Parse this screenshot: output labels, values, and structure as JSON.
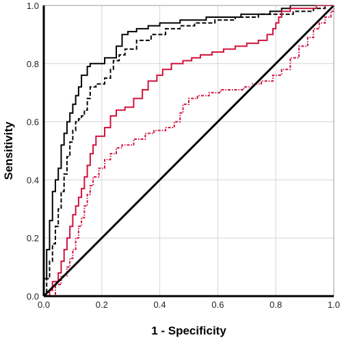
{
  "chart_data": {
    "type": "line",
    "title": "",
    "xlabel": "1 - Specificity",
    "ylabel": "Sensitivity",
    "xlim": [
      0,
      1
    ],
    "ylim": [
      0,
      1
    ],
    "grid": true,
    "legend": "none",
    "x_ticks": [
      "0.0",
      "0.2",
      "0.4",
      "0.6",
      "0.8",
      "1.0"
    ],
    "y_ticks": [
      "0.0",
      "0.2",
      "0.4",
      "0.6",
      "0.8",
      "1.0"
    ],
    "series": [
      {
        "color": "#000000",
        "style": "solid",
        "width": 2,
        "points": [
          [
            0,
            0
          ],
          [
            0,
            0.06
          ],
          [
            0.01,
            0.1
          ],
          [
            0.01,
            0.16
          ],
          [
            0.02,
            0.2
          ],
          [
            0.02,
            0.26
          ],
          [
            0.03,
            0.3
          ],
          [
            0.03,
            0.36
          ],
          [
            0.04,
            0.4
          ],
          [
            0.05,
            0.44
          ],
          [
            0.06,
            0.48
          ],
          [
            0.06,
            0.52
          ],
          [
            0.07,
            0.56
          ],
          [
            0.08,
            0.6
          ],
          [
            0.09,
            0.63
          ],
          [
            0.1,
            0.66
          ],
          [
            0.11,
            0.69
          ],
          [
            0.12,
            0.72
          ],
          [
            0.13,
            0.76
          ],
          [
            0.15,
            0.79
          ],
          [
            0.16,
            0.8
          ],
          [
            0.21,
            0.8
          ],
          [
            0.21,
            0.82
          ],
          [
            0.25,
            0.86
          ],
          [
            0.27,
            0.9
          ],
          [
            0.29,
            0.91
          ],
          [
            0.32,
            0.92
          ],
          [
            0.36,
            0.93
          ],
          [
            0.4,
            0.94
          ],
          [
            0.47,
            0.95
          ],
          [
            0.56,
            0.96
          ],
          [
            0.68,
            0.97
          ],
          [
            0.78,
            0.98
          ],
          [
            0.82,
            0.99
          ],
          [
            0.85,
            1.0
          ],
          [
            1.0,
            1.0
          ]
        ]
      },
      {
        "color": "#000000",
        "style": "dashed",
        "width": 2,
        "points": [
          [
            0,
            0
          ],
          [
            0.01,
            0.06
          ],
          [
            0.02,
            0.12
          ],
          [
            0.03,
            0.18
          ],
          [
            0.04,
            0.24
          ],
          [
            0.05,
            0.3
          ],
          [
            0.06,
            0.36
          ],
          [
            0.07,
            0.42
          ],
          [
            0.08,
            0.48
          ],
          [
            0.09,
            0.53
          ],
          [
            0.1,
            0.57
          ],
          [
            0.11,
            0.6
          ],
          [
            0.12,
            0.61
          ],
          [
            0.13,
            0.62
          ],
          [
            0.14,
            0.64
          ],
          [
            0.15,
            0.68
          ],
          [
            0.16,
            0.72
          ],
          [
            0.18,
            0.73
          ],
          [
            0.21,
            0.75
          ],
          [
            0.23,
            0.78
          ],
          [
            0.24,
            0.81
          ],
          [
            0.26,
            0.83
          ],
          [
            0.28,
            0.85
          ],
          [
            0.32,
            0.88
          ],
          [
            0.37,
            0.9
          ],
          [
            0.42,
            0.92
          ],
          [
            0.47,
            0.93
          ],
          [
            0.52,
            0.94
          ],
          [
            0.59,
            0.95
          ],
          [
            0.66,
            0.96
          ],
          [
            0.74,
            0.97
          ],
          [
            0.82,
            0.97
          ],
          [
            0.86,
            0.98
          ],
          [
            0.93,
            0.99
          ],
          [
            0.97,
            1.0
          ],
          [
            1.0,
            1.0
          ]
        ]
      },
      {
        "color": "#d0103a",
        "style": "solid",
        "width": 2,
        "points": [
          [
            0,
            0
          ],
          [
            0.02,
            0.02
          ],
          [
            0.03,
            0.05
          ],
          [
            0.05,
            0.08
          ],
          [
            0.06,
            0.12
          ],
          [
            0.07,
            0.16
          ],
          [
            0.08,
            0.2
          ],
          [
            0.09,
            0.24
          ],
          [
            0.1,
            0.28
          ],
          [
            0.11,
            0.31
          ],
          [
            0.12,
            0.34
          ],
          [
            0.13,
            0.37
          ],
          [
            0.14,
            0.41
          ],
          [
            0.15,
            0.45
          ],
          [
            0.16,
            0.49
          ],
          [
            0.17,
            0.52
          ],
          [
            0.18,
            0.55
          ],
          [
            0.21,
            0.58
          ],
          [
            0.23,
            0.62
          ],
          [
            0.25,
            0.64
          ],
          [
            0.28,
            0.65
          ],
          [
            0.31,
            0.68
          ],
          [
            0.34,
            0.71
          ],
          [
            0.36,
            0.74
          ],
          [
            0.39,
            0.76
          ],
          [
            0.41,
            0.78
          ],
          [
            0.44,
            0.8
          ],
          [
            0.48,
            0.81
          ],
          [
            0.51,
            0.82
          ],
          [
            0.54,
            0.83
          ],
          [
            0.58,
            0.84
          ],
          [
            0.62,
            0.85
          ],
          [
            0.66,
            0.86
          ],
          [
            0.7,
            0.87
          ],
          [
            0.74,
            0.88
          ],
          [
            0.77,
            0.9
          ],
          [
            0.79,
            0.92
          ],
          [
            0.8,
            0.94
          ],
          [
            0.81,
            0.96
          ],
          [
            0.82,
            0.98
          ],
          [
            0.85,
            0.99
          ],
          [
            0.94,
            1.0
          ],
          [
            1.0,
            1.0
          ]
        ]
      },
      {
        "color": "#d0103a",
        "style": "dotted",
        "width": 2,
        "points": [
          [
            0,
            0
          ],
          [
            0.04,
            0.04
          ],
          [
            0.06,
            0.07
          ],
          [
            0.08,
            0.1
          ],
          [
            0.09,
            0.13
          ],
          [
            0.1,
            0.16
          ],
          [
            0.11,
            0.2
          ],
          [
            0.12,
            0.24
          ],
          [
            0.13,
            0.27
          ],
          [
            0.14,
            0.31
          ],
          [
            0.15,
            0.35
          ],
          [
            0.16,
            0.38
          ],
          [
            0.17,
            0.41
          ],
          [
            0.19,
            0.44
          ],
          [
            0.21,
            0.47
          ],
          [
            0.23,
            0.49
          ],
          [
            0.25,
            0.51
          ],
          [
            0.27,
            0.52
          ],
          [
            0.31,
            0.54
          ],
          [
            0.35,
            0.56
          ],
          [
            0.38,
            0.57
          ],
          [
            0.42,
            0.58
          ],
          [
            0.45,
            0.6
          ],
          [
            0.47,
            0.63
          ],
          [
            0.48,
            0.66
          ],
          [
            0.5,
            0.68
          ],
          [
            0.53,
            0.69
          ],
          [
            0.57,
            0.7
          ],
          [
            0.61,
            0.71
          ],
          [
            0.65,
            0.71
          ],
          [
            0.69,
            0.72
          ],
          [
            0.72,
            0.73
          ],
          [
            0.75,
            0.74
          ],
          [
            0.79,
            0.76
          ],
          [
            0.82,
            0.78
          ],
          [
            0.85,
            0.82
          ],
          [
            0.88,
            0.86
          ],
          [
            0.91,
            0.89
          ],
          [
            0.93,
            0.92
          ],
          [
            0.95,
            0.94
          ],
          [
            0.97,
            0.96
          ],
          [
            0.99,
            0.98
          ],
          [
            1.0,
            1.0
          ]
        ]
      },
      {
        "color": "#000000",
        "style": "solid",
        "width": 3,
        "points": [
          [
            0,
            0
          ],
          [
            1,
            1
          ]
        ]
      }
    ]
  }
}
